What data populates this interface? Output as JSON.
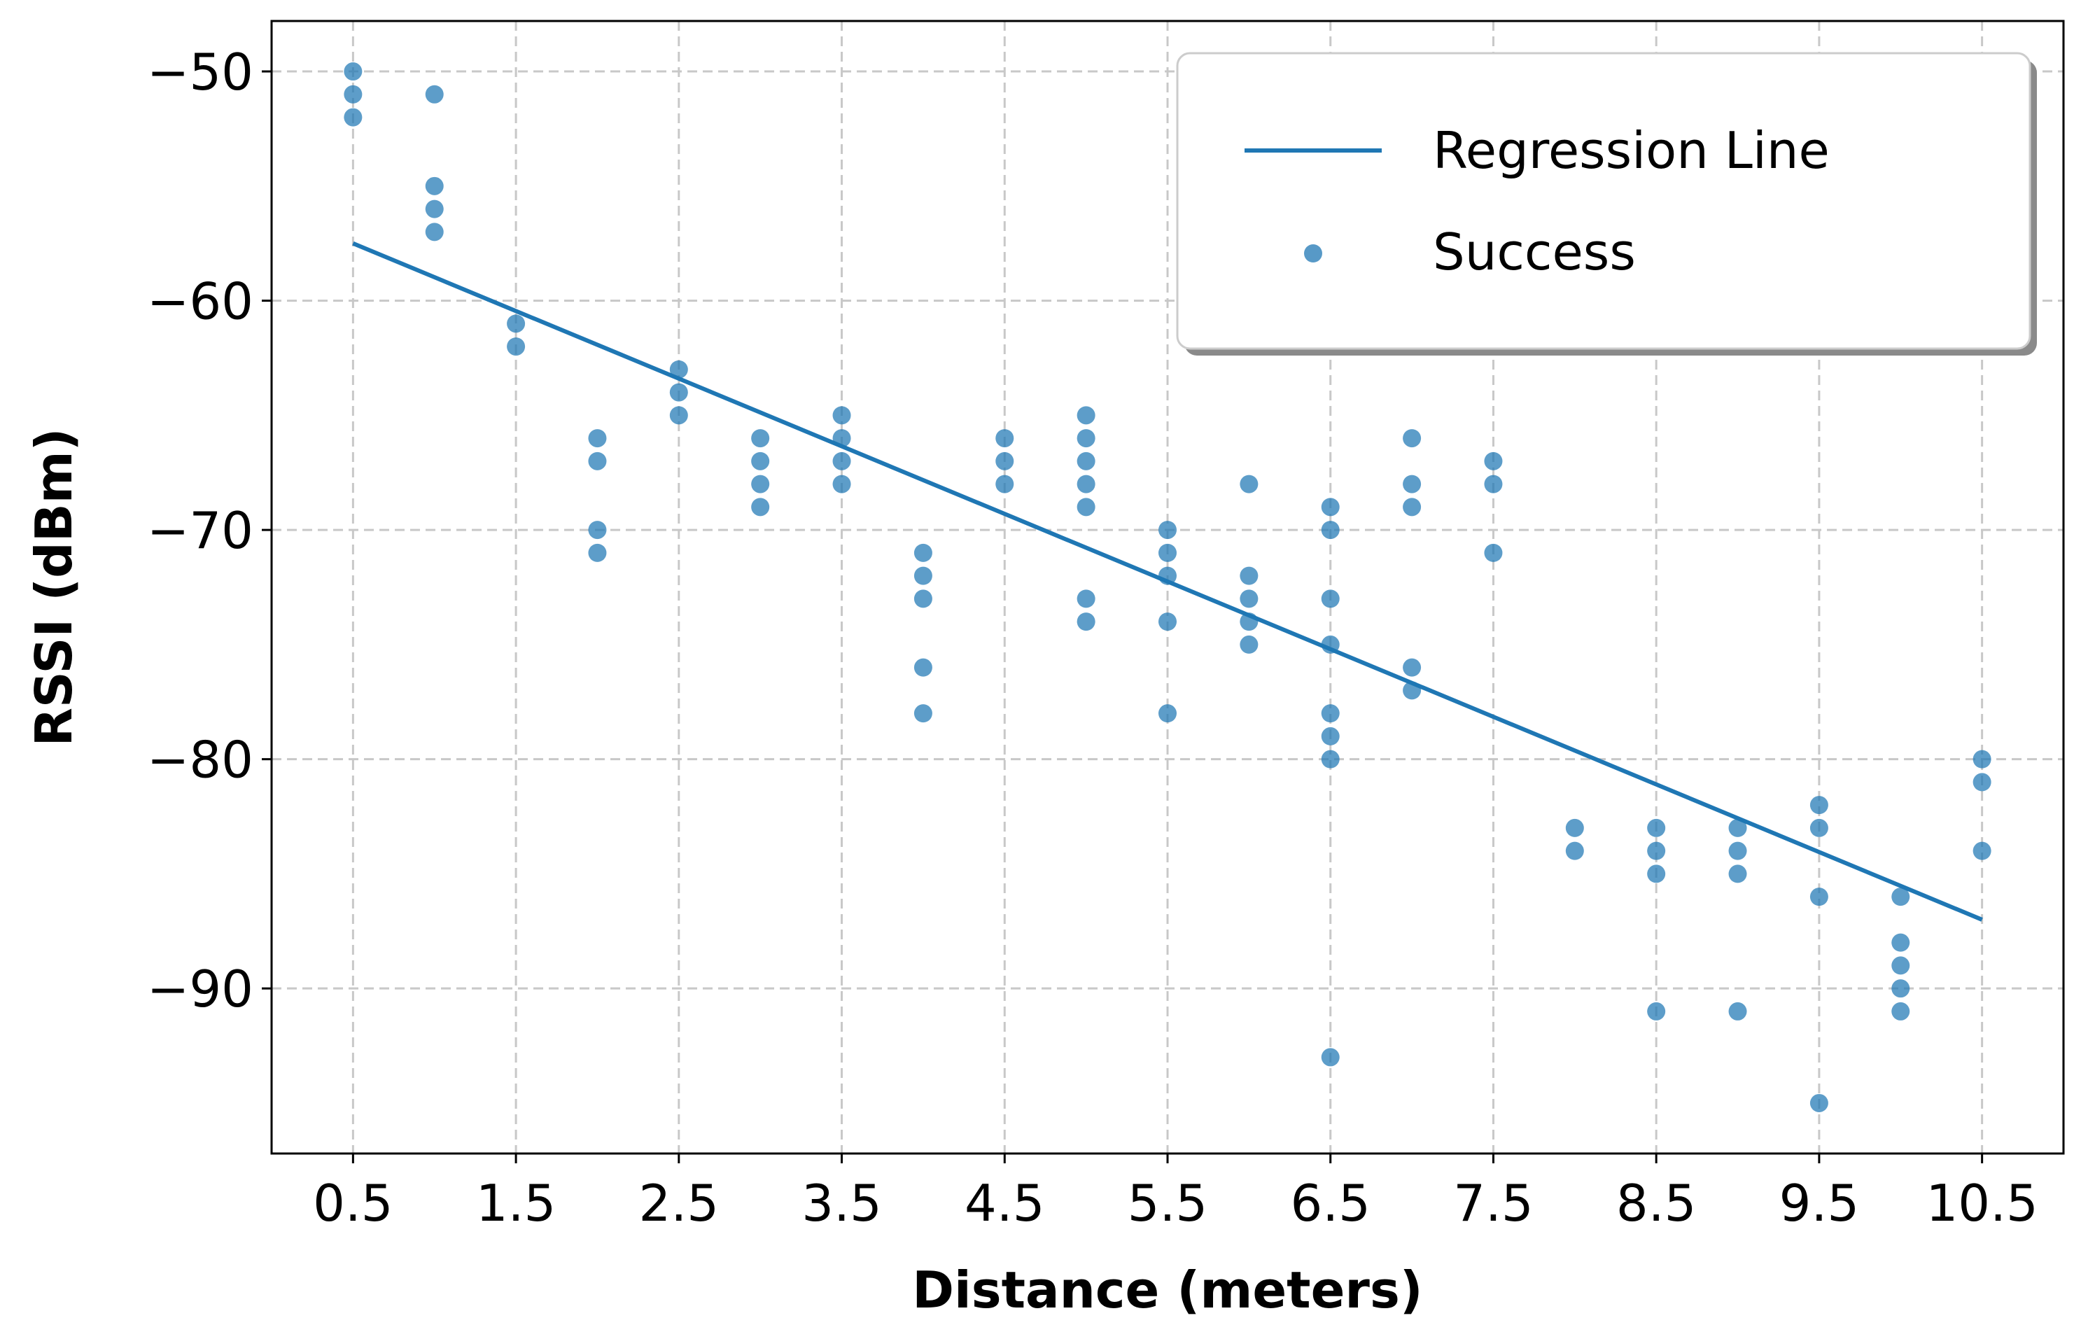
{
  "chart_data": {
    "type": "scatter",
    "xlabel": "Distance (meters)",
    "ylabel": "RSSI (dBm)",
    "xlim": [
      0.0,
      11.0
    ],
    "ylim": [
      -97.2,
      -47.8
    ],
    "x_ticks": [
      "0.5",
      "1.5",
      "2.5",
      "3.5",
      "4.5",
      "5.5",
      "6.5",
      "7.5",
      "8.5",
      "9.5",
      "10.5"
    ],
    "x_tick_values": [
      0.5,
      1.5,
      2.5,
      3.5,
      4.5,
      5.5,
      6.5,
      7.5,
      8.5,
      9.5,
      10.5
    ],
    "y_ticks": [
      "−50",
      "−60",
      "−70",
      "−80",
      "−90"
    ],
    "y_tick_values": [
      -50,
      -60,
      -70,
      -80,
      -90
    ],
    "grid": true,
    "legend_position": "top-right",
    "colors": {
      "series": "#1f77b4"
    },
    "series": [
      {
        "name": "Regression Line",
        "kind": "line",
        "x": [
          0.5,
          10.5
        ],
        "y": [
          -57.5,
          -87.0
        ]
      },
      {
        "name": "Success",
        "kind": "scatter",
        "x": [
          0.5,
          0.5,
          0.5,
          1.0,
          1.0,
          1.0,
          1.0,
          1.5,
          1.5,
          2.0,
          2.0,
          2.0,
          2.0,
          2.5,
          2.5,
          2.5,
          3.0,
          3.0,
          3.0,
          3.0,
          3.5,
          3.5,
          3.5,
          3.5,
          4.0,
          4.0,
          4.0,
          4.0,
          4.0,
          4.5,
          4.5,
          4.5,
          5.0,
          5.0,
          5.0,
          5.0,
          5.0,
          5.0,
          5.0,
          5.5,
          5.5,
          5.5,
          5.5,
          5.5,
          6.0,
          6.0,
          6.0,
          6.0,
          6.0,
          6.5,
          6.5,
          6.5,
          6.5,
          6.5,
          6.5,
          6.5,
          6.5,
          7.0,
          7.0,
          7.0,
          7.0,
          7.0,
          7.5,
          7.5,
          7.5,
          8.0,
          8.0,
          8.5,
          8.5,
          8.5,
          8.5,
          9.0,
          9.0,
          9.0,
          9.0,
          9.5,
          9.5,
          9.5,
          9.5,
          10.0,
          10.0,
          10.0,
          10.0,
          10.0,
          10.5,
          10.5,
          10.5
        ],
        "y": [
          -50,
          -51,
          -52,
          -51,
          -55,
          -56,
          -57,
          -61,
          -62,
          -66,
          -67,
          -70,
          -71,
          -63,
          -64,
          -65,
          -66,
          -67,
          -68,
          -69,
          -65,
          -66,
          -67,
          -68,
          -71,
          -72,
          -73,
          -76,
          -78,
          -66,
          -67,
          -68,
          -65,
          -66,
          -67,
          -68,
          -69,
          -73,
          -74,
          -70,
          -71,
          -72,
          -74,
          -78,
          -68,
          -72,
          -73,
          -74,
          -75,
          -69,
          -70,
          -73,
          -75,
          -78,
          -79,
          -80,
          -93,
          -66,
          -68,
          -69,
          -76,
          -77,
          -67,
          -68,
          -71,
          -83,
          -84,
          -83,
          -84,
          -85,
          -91,
          -83,
          -84,
          -85,
          -91,
          -82,
          -83,
          -86,
          -95,
          -86,
          -88,
          -89,
          -90,
          -91,
          -80,
          -81,
          -84
        ]
      }
    ]
  }
}
